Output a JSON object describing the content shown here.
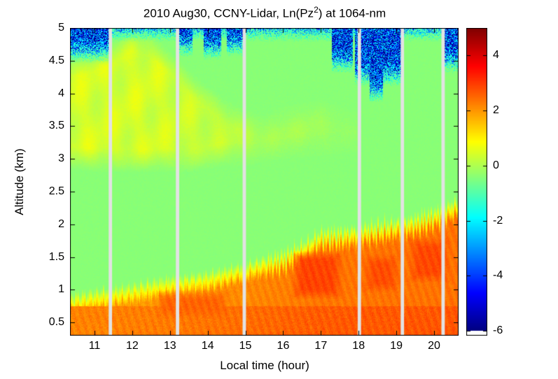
{
  "title": {
    "prefix": "2010 Aug30, CCNY-Lidar, Ln(Pz",
    "superscript": "2",
    "suffix": ") at 1064-nm"
  },
  "axes": {
    "xlabel": "Local time (hour)",
    "ylabel": "Altitude (km)",
    "x_ticks": [
      "11",
      "12",
      "13",
      "14",
      "15",
      "16",
      "17",
      "18",
      "19",
      "20"
    ],
    "y_ticks": [
      "0.5",
      "1",
      "1.5",
      "2",
      "2.5",
      "3",
      "3.5",
      "4",
      "4.5",
      "5"
    ],
    "colorbar_ticks": [
      "4",
      "2",
      "0",
      "-2",
      "-4",
      "-6"
    ]
  },
  "chart_data": {
    "type": "heatmap",
    "title": "2010 Aug30, CCNY-Lidar, Ln(Pz2) at 1064-nm",
    "xlabel": "Local time (hour)",
    "ylabel": "Altitude (km)",
    "x_range_hours": [
      10.35,
      20.65
    ],
    "y_range_km": [
      0.3,
      5.0
    ],
    "value_range": [
      -6,
      5
    ],
    "colormap": "jet",
    "colorbar_under_color": "#ffffff",
    "gap_color": "#e2e2e2",
    "background_value": -0.4,
    "data_gap_hours": [
      11.42,
      13.2,
      14.97,
      18.02,
      19.16,
      20.24
    ],
    "gap_width_hours": 0.09,
    "boundary_layer": {
      "hours": [
        10.35,
        11,
        12,
        13,
        14,
        15,
        16,
        16.5,
        17,
        17.5,
        18,
        18.5,
        19,
        19.5,
        20,
        20.65
      ],
      "top_km": [
        0.82,
        0.88,
        0.97,
        1.08,
        1.15,
        1.3,
        1.45,
        1.6,
        1.78,
        1.8,
        1.85,
        1.9,
        1.95,
        2.0,
        2.1,
        2.28
      ],
      "core_hours": [
        10.35,
        13,
        15,
        17,
        20.65
      ],
      "core_values": [
        1.9,
        2.0,
        2.15,
        2.35,
        2.4
      ],
      "surface_extra": 0.3,
      "surface_top_km": 0.75
    },
    "hot_patches": [
      {
        "t0": 16.2,
        "t1": 17.6,
        "z0": 0.85,
        "z1": 1.6,
        "value": 2.9
      },
      {
        "t0": 18.1,
        "t1": 19.1,
        "z0": 0.95,
        "z1": 1.55,
        "value": 2.8
      },
      {
        "t0": 19.3,
        "t1": 20.45,
        "z0": 1.1,
        "z1": 1.8,
        "value": 2.85
      },
      {
        "t0": 12.6,
        "t1": 14.6,
        "z0": 0.55,
        "z1": 1.0,
        "value": 2.55
      }
    ],
    "aloft_layer": {
      "hours": [
        10.35,
        11,
        11.5,
        12,
        12.5,
        13,
        13.5,
        14,
        14.5,
        15,
        15.5,
        16,
        17,
        18
      ],
      "top_km": [
        4.4,
        4.5,
        4.6,
        4.8,
        4.7,
        4.45,
        4.15,
        3.9,
        3.7,
        3.55,
        3.45,
        3.6,
        3.7,
        3.5
      ],
      "base_km": [
        3.05,
        3.0,
        3.0,
        3.0,
        3.0,
        3.0,
        3.0,
        3.05,
        3.1,
        3.1,
        3.15,
        3.2,
        3.25,
        3.3
      ],
      "strength": [
        1,
        1,
        1,
        1,
        1,
        0.9,
        0.85,
        0.8,
        0.7,
        0.6,
        0.5,
        0.4,
        0.3,
        0.15
      ],
      "delta_value": 1.1
    },
    "noise_top": {
      "default_base_km": 4.78,
      "columns": [
        {
          "t0": 10.35,
          "t1": 11.42,
          "base_km": 4.45
        },
        {
          "t0": 13.25,
          "t1": 13.6,
          "base_km": 4.55
        },
        {
          "t0": 13.9,
          "t1": 14.35,
          "base_km": 4.5
        },
        {
          "t0": 14.5,
          "t1": 14.97,
          "base_km": 4.55
        },
        {
          "t0": 17.3,
          "t1": 17.85,
          "base_km": 4.3
        },
        {
          "t0": 17.9,
          "t1": 19.16,
          "base_km": 4.1
        },
        {
          "t0": 18.3,
          "t1": 18.65,
          "base_km": 3.85
        },
        {
          "t0": 20.28,
          "t1": 20.65,
          "base_km": 4.3
        }
      ]
    }
  }
}
